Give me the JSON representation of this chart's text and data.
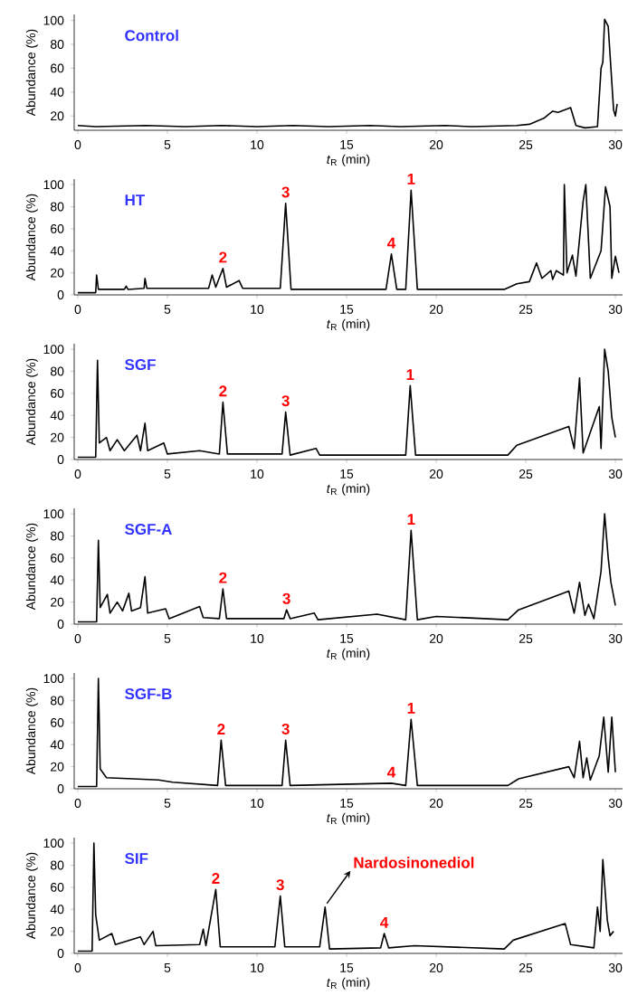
{
  "chart_data": [
    {
      "type": "line",
      "title": "Control",
      "xlabel": "*t*$_{R}$ (min)",
      "ylabel": "Abundance (%)",
      "color": "#000000",
      "xlim": [
        -0.2,
        30.4
      ],
      "ylim": [
        8,
        105
      ],
      "xticks": [
        0,
        5,
        10,
        15,
        20,
        25,
        30
      ],
      "yticks": [
        20,
        40,
        60,
        80,
        100
      ],
      "x": [
        0,
        1,
        3.8,
        6,
        8,
        10,
        12,
        14,
        16.3,
        18,
        20.5,
        22,
        24.5,
        25.2,
        26,
        26.5,
        26.8,
        27.5,
        27.8,
        28.3,
        29.0,
        29.2,
        29.3,
        29.4,
        29.6,
        29.9,
        30.0,
        30.1
      ],
      "values": [
        12,
        11,
        12,
        11,
        12,
        11,
        12,
        11,
        12,
        11,
        12,
        11,
        12,
        13,
        18,
        24,
        23,
        27,
        12,
        10,
        11,
        60,
        65,
        101,
        95,
        25,
        20,
        30
      ]
    },
    {
      "type": "line",
      "title": "HT",
      "xlabel": "*t*$_{R}$ (min)",
      "ylabel": "Abundance (%)",
      "color": "#000000",
      "xlim": [
        -0.2,
        30.4
      ],
      "ylim": [
        0,
        105
      ],
      "xticks": [
        0,
        5,
        10,
        15,
        20,
        25,
        30
      ],
      "yticks": [
        0,
        20,
        40,
        60,
        80,
        100
      ],
      "x": [
        0,
        1.0,
        1.05,
        1.15,
        2.6,
        2.7,
        2.8,
        3.7,
        3.75,
        3.85,
        7.3,
        7.5,
        7.7,
        8.1,
        8.3,
        9.0,
        9.2,
        11.3,
        11.6,
        11.9,
        17.2,
        17.5,
        17.8,
        18.3,
        18.6,
        18.95,
        23.8,
        24.5,
        25.2,
        25.6,
        25.9,
        26.4,
        26.5,
        26.7,
        27.1,
        27.15,
        27.3,
        27.6,
        27.8,
        28.2,
        28.35,
        28.6,
        29.2,
        29.45,
        29.7,
        29.8,
        30.0,
        30.2
      ],
      "values": [
        2,
        2,
        18,
        5,
        5,
        8,
        5,
        6,
        15,
        6,
        6,
        18,
        7,
        24,
        7,
        13,
        6,
        6,
        83,
        5,
        5,
        37,
        5,
        5,
        95,
        5,
        5,
        10,
        12,
        29,
        15,
        22,
        14,
        22,
        18,
        100,
        20,
        36,
        17,
        85,
        100,
        15,
        40,
        98,
        80,
        15,
        35,
        20
      ],
      "annotations": [
        {
          "text": "2",
          "x": 8.1,
          "y": 24
        },
        {
          "text": "3",
          "x": 11.6,
          "y": 83
        },
        {
          "text": "4",
          "x": 17.5,
          "y": 37
        },
        {
          "text": "1",
          "x": 18.6,
          "y": 95
        }
      ]
    },
    {
      "type": "line",
      "title": "SGF",
      "xlabel": "*t*$_{R}$ (min)",
      "ylabel": "Abundance (%)",
      "color": "#000000",
      "xlim": [
        -0.2,
        30.4
      ],
      "ylim": [
        0,
        105
      ],
      "xticks": [
        0,
        5,
        10,
        15,
        20,
        25,
        30
      ],
      "yticks": [
        0,
        20,
        40,
        60,
        80,
        100
      ],
      "x": [
        0,
        1.0,
        1.1,
        1.2,
        1.6,
        1.8,
        2.2,
        2.6,
        3.3,
        3.5,
        3.75,
        3.9,
        4.8,
        5.0,
        6.8,
        7.9,
        8.1,
        8.35,
        11.4,
        11.6,
        11.85,
        13.3,
        13.5,
        18.3,
        18.55,
        18.85,
        24,
        24.5,
        27.4,
        27.7,
        28.0,
        28.2,
        29.1,
        29.2,
        29.4,
        29.6,
        29.8,
        30.0
      ],
      "values": [
        2,
        2,
        90,
        15,
        20,
        8,
        18,
        8,
        22,
        8,
        33,
        8,
        15,
        5,
        8,
        5,
        52,
        5,
        5,
        43,
        4,
        10,
        4,
        4,
        67,
        4,
        4,
        13,
        30,
        10,
        74,
        6,
        48,
        10,
        100,
        80,
        38,
        20
      ],
      "annotations": [
        {
          "text": "2",
          "x": 8.1,
          "y": 52
        },
        {
          "text": "3",
          "x": 11.6,
          "y": 43
        },
        {
          "text": "1",
          "x": 18.55,
          "y": 67
        }
      ]
    },
    {
      "type": "line",
      "title": "SGF-A",
      "xlabel": "*t*$_{R}$ (min)",
      "ylabel": "Abundance (%)",
      "color": "#000000",
      "xlim": [
        -0.2,
        30.4
      ],
      "ylim": [
        0,
        105
      ],
      "xticks": [
        0,
        5,
        10,
        15,
        20,
        25,
        30
      ],
      "yticks": [
        0,
        20,
        40,
        60,
        80,
        100
      ],
      "x": [
        0,
        1.05,
        1.15,
        1.25,
        1.65,
        1.8,
        2.2,
        2.5,
        2.85,
        3.0,
        3.5,
        3.75,
        3.9,
        4.9,
        5.1,
        6.8,
        7.0,
        7.9,
        8.1,
        8.3,
        11.5,
        11.65,
        11.85,
        13.2,
        13.4,
        16.7,
        18.3,
        18.6,
        18.95,
        20.0,
        24,
        24.6,
        27.4,
        27.7,
        28.0,
        28.3,
        28.5,
        28.8,
        29.2,
        29.4,
        29.6,
        29.75,
        30.0
      ],
      "values": [
        2,
        2,
        76,
        15,
        27,
        10,
        20,
        12,
        28,
        12,
        15,
        43,
        10,
        14,
        5,
        16,
        6,
        5,
        32,
        5,
        5,
        13,
        5,
        10,
        4,
        9,
        4,
        85,
        4,
        7,
        4,
        13,
        30,
        10,
        38,
        8,
        18,
        5,
        48,
        100,
        60,
        38,
        17
      ],
      "annotations": [
        {
          "text": "2",
          "x": 8.1,
          "y": 32
        },
        {
          "text": "3",
          "x": 11.65,
          "y": 13
        },
        {
          "text": "1",
          "x": 18.6,
          "y": 85
        }
      ]
    },
    {
      "type": "line",
      "title": "SGF-B",
      "xlabel": "*t*$_{R}$ (min)",
      "ylabel": "Abundance (%)",
      "color": "#000000",
      "xlim": [
        -0.2,
        30.4
      ],
      "ylim": [
        0,
        105
      ],
      "xticks": [
        0,
        5,
        10,
        15,
        20,
        25,
        30
      ],
      "yticks": [
        0,
        20,
        40,
        60,
        80,
        100
      ],
      "x": [
        0,
        1.05,
        1.15,
        1.25,
        1.6,
        4.5,
        5.3,
        7.8,
        8.0,
        8.25,
        11.4,
        11.6,
        11.85,
        17.5,
        18.3,
        18.6,
        18.95,
        24,
        24.6,
        27.4,
        27.7,
        28.0,
        28.2,
        28.4,
        28.6,
        29.1,
        29.35,
        29.6,
        29.8,
        30.0
      ],
      "values": [
        2,
        2,
        100,
        18,
        10,
        8,
        6,
        3,
        44,
        3,
        3,
        44,
        3,
        5,
        3,
        63,
        3,
        3,
        9,
        20,
        10,
        43,
        10,
        28,
        8,
        30,
        65,
        15,
        65,
        15
      ],
      "annotations": [
        {
          "text": "2",
          "x": 8.0,
          "y": 44
        },
        {
          "text": "3",
          "x": 11.6,
          "y": 44
        },
        {
          "text": "4",
          "x": 17.5,
          "y": 5
        },
        {
          "text": "1",
          "x": 18.6,
          "y": 63
        }
      ]
    },
    {
      "type": "line",
      "title": "SIF",
      "xlabel": "*t*$_{R}$ (min)",
      "ylabel": "Abundance (%)",
      "color": "#000000",
      "xlim": [
        -0.2,
        30.4
      ],
      "ylim": [
        0,
        105
      ],
      "xticks": [
        0,
        5,
        10,
        15,
        20,
        25,
        30
      ],
      "yticks": [
        0,
        20,
        40,
        60,
        80,
        100
      ],
      "x": [
        0,
        0.8,
        0.9,
        1.0,
        1.2,
        1.9,
        2.1,
        3.5,
        3.7,
        4.2,
        4.35,
        6.8,
        7.0,
        7.15,
        7.7,
        7.95,
        11.0,
        11.3,
        11.55,
        13.5,
        13.8,
        14.05,
        16.9,
        17.1,
        17.35,
        18.8,
        23.8,
        24.3,
        27.2,
        27.5,
        28.8,
        29.0,
        29.15,
        29.3,
        29.55,
        29.7,
        29.9
      ],
      "values": [
        2,
        2,
        100,
        35,
        12,
        18,
        8,
        15,
        8,
        20,
        7,
        8,
        22,
        7,
        58,
        6,
        6,
        52,
        6,
        6,
        42,
        4,
        5,
        18,
        5,
        7,
        4,
        12,
        27,
        8,
        5,
        42,
        20,
        85,
        30,
        16,
        20
      ],
      "annotations": [
        {
          "text": "2",
          "x": 7.7,
          "y": 58
        },
        {
          "text": "3",
          "x": 11.3,
          "y": 52
        },
        {
          "text": "Nardosinonediol",
          "x": 13.8,
          "y": 42
        },
        {
          "text": "4",
          "x": 17.1,
          "y": 18
        }
      ]
    }
  ]
}
